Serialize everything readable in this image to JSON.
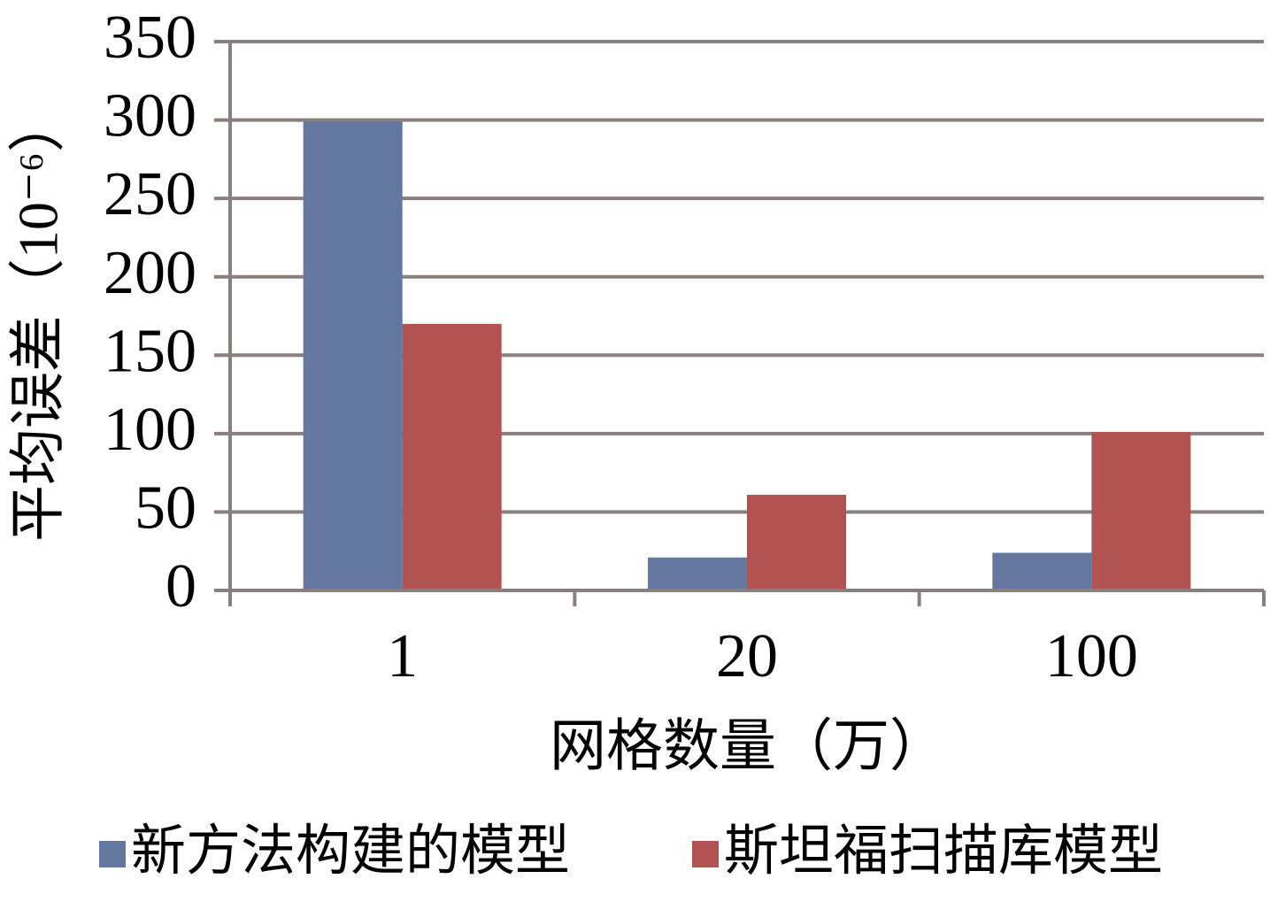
{
  "chart_data": {
    "type": "bar",
    "categories": [
      "1",
      "20",
      "100"
    ],
    "series": [
      {
        "name": "新方法构建的模型",
        "values": [
          299,
          21,
          24
        ],
        "color": "#64779e"
      },
      {
        "name": "斯坦福扫描库模型",
        "values": [
          170,
          61,
          101
        ],
        "color": "#b05351"
      }
    ],
    "xlabel": "网格数量（万）",
    "ylabel": "平均误差（10⁻⁶）",
    "ylim": [
      0,
      350
    ],
    "yticks": [
      0,
      50,
      100,
      150,
      200,
      250,
      300,
      350
    ],
    "grid": true,
    "legend_position": "bottom"
  }
}
